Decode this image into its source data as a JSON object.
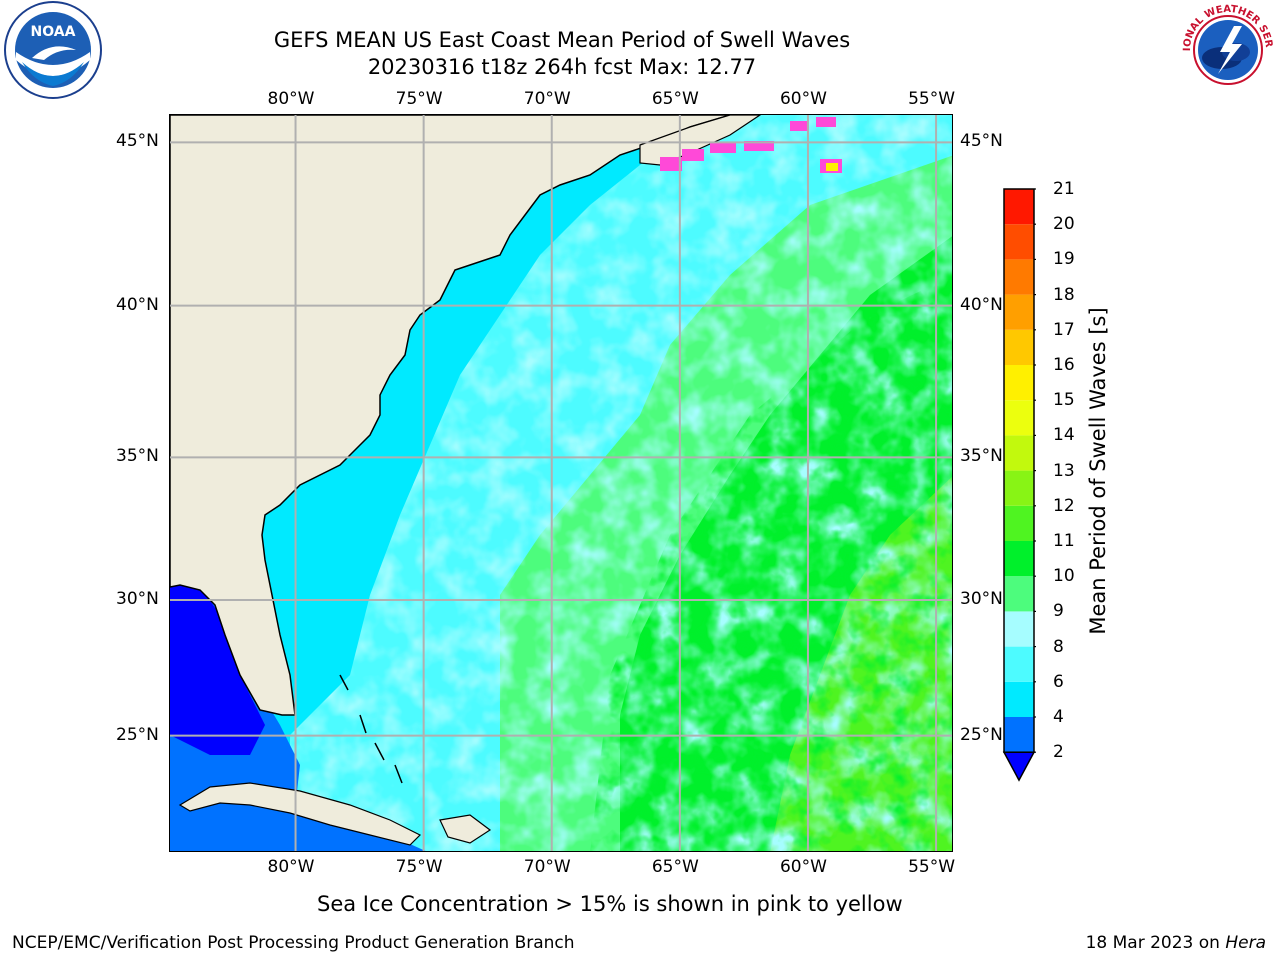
{
  "title": {
    "line1": "GEFS MEAN US East Coast Mean Period of Swell Waves",
    "line2": "20230316 t18z 264h fcst   Max: 12.77"
  },
  "axes": {
    "lon_labels": [
      "80°W",
      "75°W",
      "70°W",
      "65°W",
      "60°W",
      "55°W"
    ],
    "lat_labels": [
      "45°N",
      "40°N",
      "35°N",
      "30°N",
      "25°N"
    ],
    "lon_values": [
      -80,
      -75,
      -70,
      -65,
      -60,
      -55
    ],
    "lat_values": [
      45,
      40,
      35,
      30,
      25
    ]
  },
  "colorbar": {
    "title": "Mean Period of Swell Waves [s]",
    "ticks": [
      "2",
      "4",
      "6",
      "8",
      "9",
      "10",
      "11",
      "12",
      "13",
      "14",
      "15",
      "16",
      "17",
      "18",
      "19",
      "20",
      "21"
    ],
    "colors": [
      "#0072ff",
      "#00eaff",
      "#4dfbff",
      "#a6fdff",
      "#4dfc7d",
      "#00f02b",
      "#4ff421",
      "#88f415",
      "#c2f90d",
      "#ecff0e",
      "#fff000",
      "#ffc800",
      "#ff9f00",
      "#ff7a00",
      "#ff4d00",
      "#ff1800"
    ],
    "extend_color": "#0000ff"
  },
  "caption": "Sea Ice Concentration > 15% is shown in pink to yellow",
  "footer": {
    "left": "NCEP/EMC/Verification Post Processing Product Generation Branch",
    "right_prefix": "18 Mar 2023 on ",
    "right_italic": "Hera"
  },
  "logos": {
    "left": "NOAA",
    "right": "NATIONAL WEATHER SERVICE"
  },
  "colors": {
    "land": "#efecdc",
    "grid": "#b0b0b0"
  }
}
